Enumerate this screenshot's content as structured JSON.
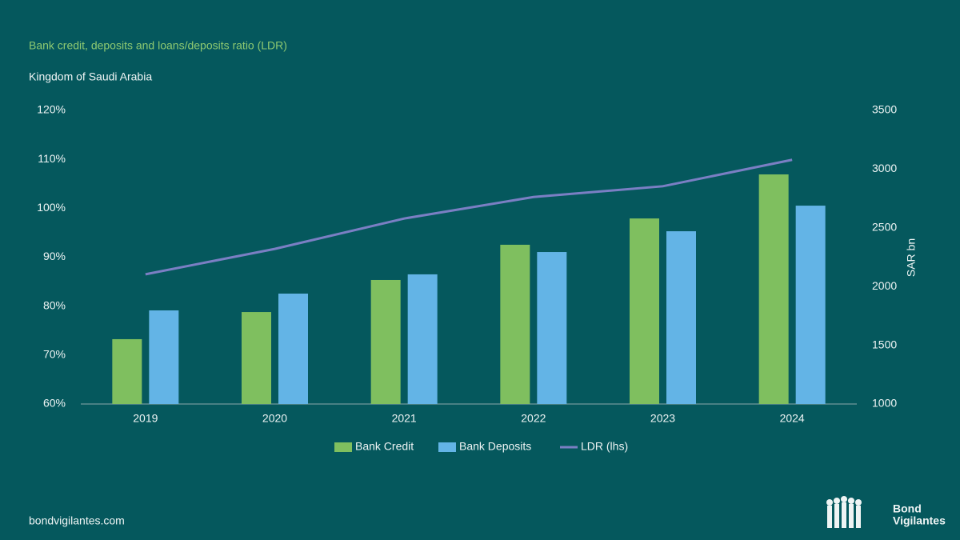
{
  "chart_data": {
    "type": "bar",
    "title": "Bank credit, deposits and loans/deposits ratio (LDR)",
    "subtitle": "Kingdom of Saudi Arabia",
    "y2_label": "SAR bn",
    "categories": [
      "2019",
      "2020",
      "2021",
      "2022",
      "2023",
      "2024"
    ],
    "series": [
      {
        "name": "Bank Credit",
        "color": "#7fbf5f",
        "axis": "y2",
        "values": [
          1552,
          1783,
          2056,
          2356,
          2580,
          2955
        ]
      },
      {
        "name": "Bank Deposits",
        "color": "#63b4e6",
        "axis": "y2",
        "values": [
          1797,
          1940,
          2104,
          2294,
          2471,
          2689
        ]
      },
      {
        "name": "LDR (lhs)",
        "color": "#7b7fc4",
        "type": "line",
        "values": [
          86.5,
          91.7,
          97.9,
          102.3,
          104.5,
          109.9
        ]
      }
    ],
    "ylim": [
      60,
      120
    ],
    "yticks": [
      {
        "value": 60,
        "label": "60%"
      },
      {
        "value": 70,
        "label": "70%"
      },
      {
        "value": 80,
        "label": "80%"
      },
      {
        "value": 90,
        "label": "90%"
      },
      {
        "value": 100,
        "label": "100%"
      },
      {
        "value": 110,
        "label": "110%"
      },
      {
        "value": 120,
        "label": "120%"
      }
    ],
    "y2lim": [
      1000,
      3500
    ],
    "y2ticks": [
      1000,
      1500,
      2000,
      2500,
      3000,
      3500
    ],
    "grid": false,
    "legend": "bottom"
  },
  "footer": "bondvigilantes.com",
  "logo": [
    "Bond",
    "Vigilantes"
  ]
}
